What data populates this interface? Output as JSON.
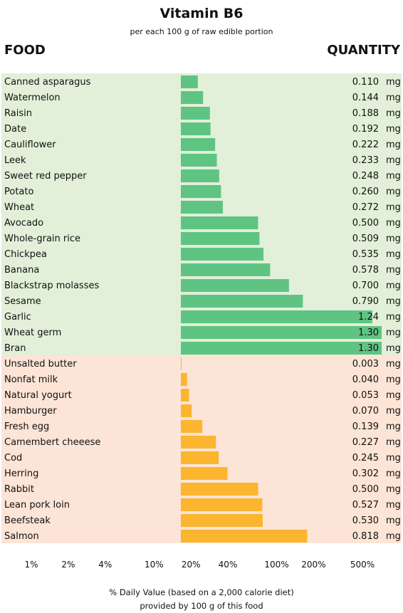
{
  "chart_data": {
    "type": "bar",
    "orientation": "horizontal",
    "title": "Vitamin B6",
    "subtitle": "per each 100 g of raw edible portion",
    "column_headers": {
      "left": "FOOD",
      "right": "QUANTITY"
    },
    "unit": "mg",
    "groups": [
      {
        "bar_color": "#5fc482",
        "background_color": "#e2efd9",
        "items": [
          {
            "name": "Canned asparagus",
            "value": 0.11,
            "label": "0.110"
          },
          {
            "name": "Watermelon",
            "value": 0.144,
            "label": "0.144"
          },
          {
            "name": "Raisin",
            "value": 0.188,
            "label": "0.188"
          },
          {
            "name": "Date",
            "value": 0.192,
            "label": "0.192"
          },
          {
            "name": "Cauliflower",
            "value": 0.222,
            "label": "0.222"
          },
          {
            "name": "Leek",
            "value": 0.233,
            "label": "0.233"
          },
          {
            "name": "Sweet red pepper",
            "value": 0.248,
            "label": "0.248"
          },
          {
            "name": "Potato",
            "value": 0.26,
            "label": "0.260"
          },
          {
            "name": "Wheat",
            "value": 0.272,
            "label": "0.272"
          },
          {
            "name": "Avocado",
            "value": 0.5,
            "label": "0.500"
          },
          {
            "name": "Whole-grain rice",
            "value": 0.509,
            "label": "0.509"
          },
          {
            "name": "Chickpea",
            "value": 0.535,
            "label": "0.535"
          },
          {
            "name": "Banana",
            "value": 0.578,
            "label": "0.578"
          },
          {
            "name": "Blackstrap molasses",
            "value": 0.7,
            "label": "0.700"
          },
          {
            "name": "Sesame",
            "value": 0.79,
            "label": "0.790"
          },
          {
            "name": "Garlic",
            "value": 1.24,
            "label": "1.24"
          },
          {
            "name": "Wheat germ",
            "value": 1.3,
            "label": "1.30"
          },
          {
            "name": "Bran",
            "value": 1.3,
            "label": "1.30"
          }
        ]
      },
      {
        "bar_color": "#fbb52e",
        "background_color": "#fce4d6",
        "items": [
          {
            "name": "Unsalted butter",
            "value": 0.003,
            "label": "0.003"
          },
          {
            "name": "Nonfat milk",
            "value": 0.04,
            "label": "0.040"
          },
          {
            "name": "Natural yogurt",
            "value": 0.053,
            "label": "0.053"
          },
          {
            "name": "Hamburger",
            "value": 0.07,
            "label": "0.070"
          },
          {
            "name": "Fresh egg",
            "value": 0.139,
            "label": "0.139"
          },
          {
            "name": "Camembert cheeese",
            "value": 0.227,
            "label": "0.227"
          },
          {
            "name": "Cod",
            "value": 0.245,
            "label": "0.245"
          },
          {
            "name": "Herring",
            "value": 0.302,
            "label": "0.302"
          },
          {
            "name": "Rabbit",
            "value": 0.5,
            "label": "0.500"
          },
          {
            "name": "Lean pork loin",
            "value": 0.527,
            "label": "0.527"
          },
          {
            "name": "Beefsteak",
            "value": 0.53,
            "label": "0.530"
          },
          {
            "name": "Salmon",
            "value": 0.818,
            "label": "0.818"
          }
        ]
      }
    ],
    "xaxis": {
      "scale": "log",
      "tick_labels": [
        "1%",
        "2%",
        "4%",
        "10%",
        "20%",
        "40%",
        "100%",
        "200%",
        "500%"
      ],
      "ticks_percent": [
        1,
        2,
        4,
        10,
        20,
        40,
        100,
        200,
        500
      ],
      "label_line1": "% Daily Value (based on a 2,000 calorie diet)",
      "label_line2": "provided by 100 g of this food"
    }
  }
}
